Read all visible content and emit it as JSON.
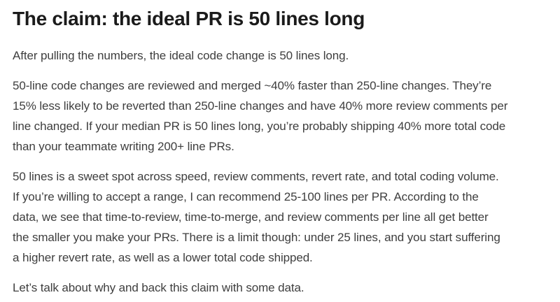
{
  "page": {
    "colors": {
      "background": "#ffffff",
      "title": "#1b1b1b",
      "body": "#3e3e3e"
    },
    "title": "The claim: the ideal PR is 50 lines long",
    "paragraphs": [
      {
        "lines": [
          "After pulling the numbers, the ideal code change is 50 lines long."
        ]
      },
      {
        "lines": [
          "50-line code changes are reviewed and merged ~40% faster than 250-line changes. They’re",
          "15% less likely to be reverted than 250-line changes and have 40% more review comments per",
          "line changed. If your median PR is 50 lines long, you’re probably shipping 40% more total code",
          "than your teammate writing 200+ line PRs."
        ]
      },
      {
        "lines": [
          "50 lines is a sweet spot across speed, review comments, revert rate, and total coding volume.",
          "If you’re willing to accept a range, I can recommend 25-100 lines per PR. According to the",
          "data, we see that time-to-review, time-to-merge, and review comments per line all get better",
          "the smaller you make your PRs. There is a limit though: under 25 lines, and you start suffering",
          "a higher revert rate, as well as a lower total code shipped."
        ]
      },
      {
        "lines": [
          "Let’s talk about why and back this claim with some data."
        ]
      }
    ]
  }
}
